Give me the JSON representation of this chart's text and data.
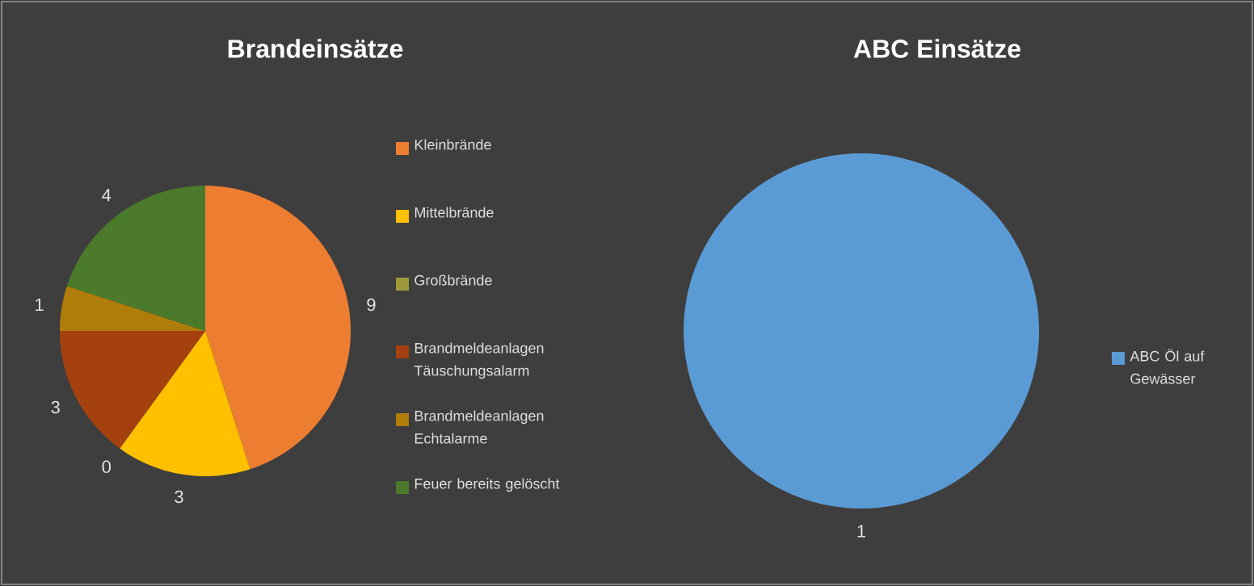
{
  "chart_data": [
    {
      "type": "pie",
      "title": "Brandeinsätze",
      "categories": [
        "Kleinbrände",
        "Mittelbrände",
        "Großbrände",
        "Brandmeldeanlagen Täuschungsalarm",
        "Brandmeldeanlagen Echtalarme",
        "Feuer bereits gelöscht"
      ],
      "values": [
        9,
        3,
        0,
        3,
        1,
        4
      ],
      "value_labels": [
        "9",
        "3",
        "0",
        "3",
        "1",
        "4"
      ],
      "colors": [
        "#ed7d31",
        "#ffc000",
        "#9e9a3a",
        "#a5410f",
        "#b07d0a",
        "#4a7a2a"
      ],
      "legend": "right"
    },
    {
      "type": "pie",
      "title": "ABC Einsätze",
      "categories": [
        "ABC Öl auf Gewässer"
      ],
      "values": [
        1
      ],
      "colors": [
        "#5b9bd5"
      ],
      "data_labels": true,
      "legend": "right"
    }
  ]
}
